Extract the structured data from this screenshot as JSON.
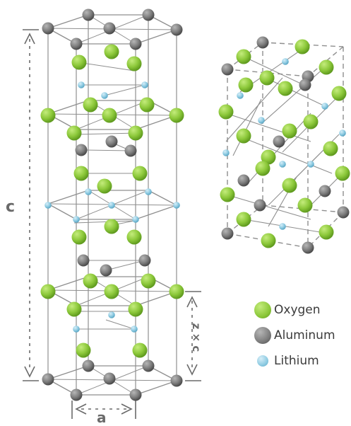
{
  "colors": {
    "oxygen": "#8cc83a",
    "oxygen_dark": "#5f9a1e",
    "aluminum": "#7d7d7d",
    "aluminum_dark": "#4d4d4d",
    "lithium": "#8ecbe2",
    "lithium_dark": "#5aa6c4",
    "bond": "#8f8f8f",
    "dimension": "#6a6a6a"
  },
  "labels": {
    "c_axis": "c",
    "a_axis": "a",
    "zc_axis": "z × c"
  },
  "legend": [
    {
      "label": "Oxygen",
      "color": "#8cc83a",
      "icon": "oxygen-atom-icon"
    },
    {
      "label": "Aluminum",
      "color": "#7d7d7d",
      "icon": "aluminum-atom-icon"
    },
    {
      "label": "Lithium",
      "color": "#8ecbe2",
      "icon": "lithium-atom-icon"
    }
  ]
}
